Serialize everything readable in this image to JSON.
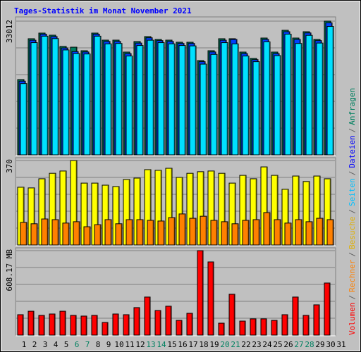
{
  "title": "Tages-Statistik im Monat November 2021",
  "separator": "/",
  "categories": [
    "1",
    "2",
    "3",
    "4",
    "5",
    "6",
    "7",
    "8",
    "9",
    "10",
    "11",
    "12",
    "13",
    "14",
    "15",
    "16",
    "17",
    "18",
    "19",
    "20",
    "21",
    "22",
    "23",
    "24",
    "25",
    "26",
    "27",
    "28",
    "29",
    "30",
    "31"
  ],
  "highlight_categories": [
    6,
    7,
    13,
    14,
    20,
    21,
    27,
    28
  ],
  "highlight_color": "#008060",
  "chart_data": [
    {
      "type": "bar",
      "ylim": [
        0,
        33012
      ],
      "yticks": [
        33012
      ],
      "grid": true,
      "series": [
        {
          "name": "Anfragen",
          "color": "#008060",
          "label_color": "#008060",
          "values": [
            18590,
            28670,
            30060,
            29540,
            26760,
            26580,
            25710,
            30060,
            28320,
            28320,
            25370,
            27970,
            29190,
            28490,
            28320,
            27800,
            27800,
            23280,
            25710,
            28670,
            28670,
            25370,
            23800,
            28840,
            25370,
            30750,
            28840,
            30400,
            28490,
            33012,
            null
          ]
        },
        {
          "name": "Dateien",
          "color": "#0040ff",
          "label_color": "#0000ff",
          "values": [
            18200,
            28300,
            29800,
            29200,
            26400,
            25500,
            25400,
            29800,
            28000,
            28000,
            25000,
            27600,
            28900,
            28200,
            28000,
            27500,
            27500,
            23000,
            25400,
            28300,
            28500,
            25000,
            23500,
            28500,
            25000,
            30400,
            28500,
            30100,
            28200,
            32600,
            null
          ]
        },
        {
          "name": "Seiten",
          "color": "#00e0ff",
          "label_color": "#00c0ff",
          "values": [
            17600,
            27700,
            29300,
            28700,
            25900,
            25000,
            24900,
            29300,
            27400,
            27500,
            24400,
            27000,
            28300,
            27700,
            27400,
            27000,
            26900,
            22400,
            24800,
            27700,
            27400,
            24400,
            23000,
            27900,
            24500,
            29800,
            27500,
            29500,
            27600,
            31700,
            null
          ]
        }
      ]
    },
    {
      "type": "bar",
      "ylim": [
        0,
        370
      ],
      "yticks": [
        370
      ],
      "grid": true,
      "series": [
        {
          "name": "Besuche",
          "color": "#ffff00",
          "label_color": "#e0b000",
          "values": [
            253,
            250,
            290,
            314,
            324,
            370,
            271,
            271,
            262,
            256,
            287,
            293,
            330,
            327,
            336,
            296,
            314,
            321,
            324,
            314,
            271,
            305,
            290,
            342,
            305,
            244,
            302,
            278,
            302,
            290,
            null
          ]
        },
        {
          "name": "Rechner",
          "color": "#ff8000",
          "label_color": "#ff8000",
          "values": [
            99,
            93,
            114,
            111,
            96,
            102,
            80,
            89,
            111,
            93,
            111,
            111,
            108,
            105,
            120,
            136,
            117,
            126,
            108,
            102,
            93,
            108,
            111,
            142,
            111,
            96,
            111,
            102,
            117,
            111,
            null
          ]
        }
      ]
    },
    {
      "type": "bar",
      "ylim": [
        0,
        608.17
      ],
      "yticks": [
        {
          "value": 608.17,
          "label": "608.17 MB"
        }
      ],
      "grid": true,
      "series": [
        {
          "name": "Volumen",
          "color": "#ff0000",
          "label_color": "#ff0000",
          "values": [
            147,
            172,
            142,
            152,
            172,
            142,
            137,
            142,
            91,
            152,
            147,
            198,
            274,
            177,
            208,
            106,
            157,
            608.17,
            527,
            86,
            294,
            101,
            117,
            117,
            106,
            147,
            274,
            142,
            218,
            375,
            null
          ]
        }
      ]
    }
  ]
}
